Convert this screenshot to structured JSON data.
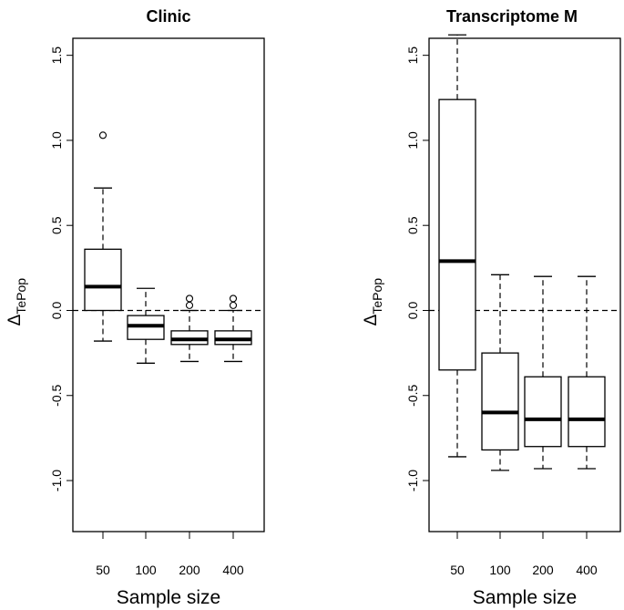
{
  "chart_data": [
    {
      "type": "boxplot",
      "title": "Clinic",
      "xlabel": "Sample size",
      "ylabel": "Δ",
      "ylabel_sub": "TePop",
      "ylim": [
        -1.3,
        1.6
      ],
      "yticks": [
        -1.0,
        -0.5,
        0.0,
        0.5,
        1.0,
        1.5
      ],
      "ytick_labels": [
        "-1.0",
        "-0.5",
        "0.0",
        "0.5",
        "1.0",
        "1.5"
      ],
      "reference_line": 0.0,
      "categories": [
        "50",
        "100",
        "200",
        "400"
      ],
      "boxes": [
        {
          "whisker_low": -0.18,
          "q1": 0.0,
          "median": 0.14,
          "q3": 0.36,
          "whisker_high": 0.72,
          "outliers": [
            1.03
          ]
        },
        {
          "whisker_low": -0.31,
          "q1": -0.17,
          "median": -0.09,
          "q3": -0.03,
          "whisker_high": 0.13,
          "outliers": []
        },
        {
          "whisker_low": -0.3,
          "q1": -0.2,
          "median": -0.17,
          "q3": -0.12,
          "whisker_high": 0.0,
          "outliers": [
            0.03,
            0.07
          ]
        },
        {
          "whisker_low": -0.3,
          "q1": -0.2,
          "median": -0.17,
          "q3": -0.12,
          "whisker_high": 0.0,
          "outliers": [
            0.03,
            0.07
          ]
        }
      ]
    },
    {
      "type": "boxplot",
      "title": "Transcriptome M",
      "xlabel": "Sample size",
      "ylabel": "Δ",
      "ylabel_sub": "TePop",
      "ylim": [
        -1.3,
        1.6
      ],
      "yticks": [
        -1.0,
        -0.5,
        0.0,
        0.5,
        1.0,
        1.5
      ],
      "ytick_labels": [
        "-1.0",
        "-0.5",
        "0.0",
        "0.5",
        "1.0",
        "1.5"
      ],
      "reference_line": 0.0,
      "categories": [
        "50",
        "100",
        "200",
        "400"
      ],
      "boxes": [
        {
          "whisker_low": -0.86,
          "q1": -0.35,
          "median": 0.29,
          "q3": 1.24,
          "whisker_high": 1.62,
          "outliers": []
        },
        {
          "whisker_low": -0.94,
          "q1": -0.82,
          "median": -0.6,
          "q3": -0.25,
          "whisker_high": 0.21,
          "outliers": []
        },
        {
          "whisker_low": -0.93,
          "q1": -0.8,
          "median": -0.64,
          "q3": -0.39,
          "whisker_high": 0.2,
          "outliers": []
        },
        {
          "whisker_low": -0.93,
          "q1": -0.8,
          "median": -0.64,
          "q3": -0.39,
          "whisker_high": 0.2,
          "outliers": []
        }
      ]
    }
  ]
}
